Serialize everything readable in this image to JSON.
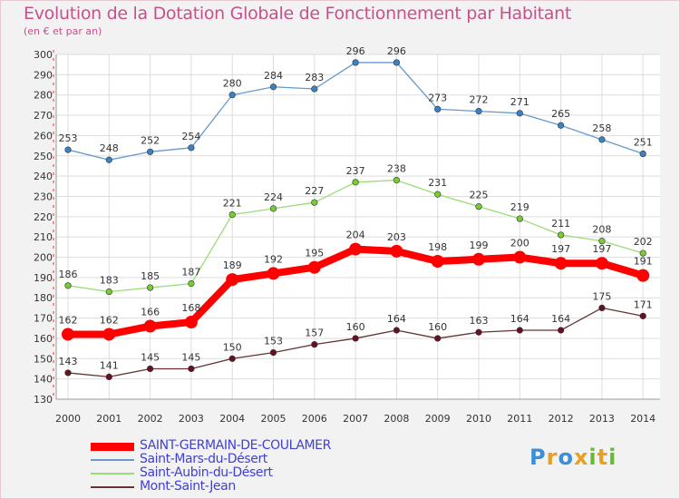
{
  "chart_data": {
    "type": "line",
    "title": "Evolution de la Dotation Globale de Fonctionnement par Habitant",
    "subtitle": "(en € et par an)",
    "categories": [
      "2000",
      "2001",
      "2002",
      "2003",
      "2004",
      "2005",
      "2006",
      "2007",
      "2008",
      "2009",
      "2010",
      "2011",
      "2012",
      "2013",
      "2014"
    ],
    "ylim": [
      130,
      300
    ],
    "yticks": [
      130,
      140,
      150,
      160,
      170,
      180,
      190,
      200,
      210,
      220,
      230,
      240,
      250,
      260,
      270,
      280,
      290,
      300
    ],
    "grid": true,
    "legend_position": "bottom",
    "series": [
      {
        "name": "SAINT-GERMAIN-DE-COULAMER",
        "color": "#ff0000",
        "marker": "#ff0000",
        "values": [
          162,
          162,
          166,
          168,
          189,
          192,
          195,
          204,
          203,
          198,
          199,
          200,
          197,
          197,
          191
        ]
      },
      {
        "name": "Saint-Mars-du-Désert",
        "color": "#6699cc",
        "marker": "#3b82c4",
        "values": [
          253,
          248,
          252,
          254,
          280,
          284,
          283,
          296,
          296,
          273,
          272,
          271,
          265,
          258,
          251
        ]
      },
      {
        "name": "Saint-Aubin-du-Désert",
        "color": "#99dd77",
        "marker": "#77cc33",
        "values": [
          186,
          183,
          185,
          187,
          221,
          224,
          227,
          237,
          238,
          231,
          225,
          219,
          211,
          208,
          202
        ]
      },
      {
        "name": "Mont-Saint-Jean",
        "color": "#663333",
        "marker": "#661122",
        "values": [
          143,
          141,
          145,
          145,
          150,
          153,
          157,
          160,
          164,
          160,
          163,
          164,
          164,
          175,
          171
        ]
      }
    ]
  },
  "logo": {
    "text": "Proxiti"
  }
}
